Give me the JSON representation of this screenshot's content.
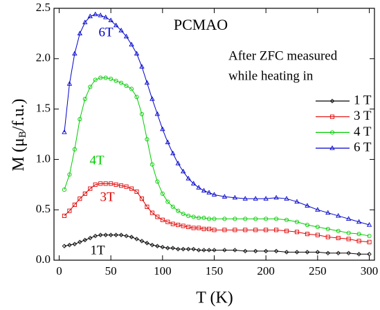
{
  "chart_data": {
    "type": "line",
    "xlabel": "T (K)",
    "ylabel": [
      "M (μ",
      "B",
      "/f.u.)"
    ],
    "annotations": [
      "PCMAO",
      "6T",
      "4T",
      "3T",
      "1T"
    ],
    "legend_title": [
      "After ZFC measured",
      "while heating in"
    ],
    "legend": "upper right",
    "xlim": [
      -5,
      305
    ],
    "ylim": [
      0,
      2.5
    ],
    "xticks": [
      0,
      50,
      100,
      150,
      200,
      250,
      300
    ],
    "yticks": [
      {
        "value": 0,
        "label": "0.0"
      },
      {
        "value": 0.5,
        "label": "0.5"
      },
      {
        "value": 1,
        "label": "1.0"
      },
      {
        "value": 1.5,
        "label": "1.5"
      },
      {
        "value": 2,
        "label": "2.0"
      },
      {
        "value": 2.5,
        "label": "2.5"
      }
    ],
    "grid": false,
    "x": [
      5,
      10,
      15,
      20,
      25,
      30,
      35,
      40,
      45,
      50,
      55,
      60,
      65,
      70,
      75,
      80,
      85,
      90,
      95,
      100,
      105,
      110,
      115,
      120,
      125,
      130,
      135,
      140,
      145,
      150,
      160,
      170,
      180,
      190,
      200,
      210,
      220,
      230,
      240,
      250,
      260,
      270,
      280,
      290,
      300
    ],
    "series": [
      {
        "name": "1 T",
        "color": "#000000",
        "marker": "diamond",
        "values": [
          0.14,
          0.15,
          0.16,
          0.18,
          0.2,
          0.22,
          0.24,
          0.25,
          0.25,
          0.25,
          0.25,
          0.25,
          0.24,
          0.23,
          0.21,
          0.19,
          0.17,
          0.15,
          0.14,
          0.13,
          0.12,
          0.12,
          0.11,
          0.11,
          0.11,
          0.11,
          0.1,
          0.1,
          0.1,
          0.1,
          0.1,
          0.1,
          0.09,
          0.09,
          0.09,
          0.09,
          0.08,
          0.08,
          0.08,
          0.08,
          0.07,
          0.07,
          0.07,
          0.06,
          0.06
        ]
      },
      {
        "name": "3 T",
        "color": "#e00000",
        "marker": "square",
        "values": [
          0.44,
          0.49,
          0.55,
          0.61,
          0.66,
          0.71,
          0.75,
          0.76,
          0.76,
          0.76,
          0.75,
          0.74,
          0.73,
          0.71,
          0.68,
          0.61,
          0.53,
          0.47,
          0.43,
          0.4,
          0.38,
          0.36,
          0.35,
          0.34,
          0.33,
          0.32,
          0.32,
          0.31,
          0.31,
          0.3,
          0.3,
          0.3,
          0.3,
          0.3,
          0.3,
          0.3,
          0.29,
          0.28,
          0.26,
          0.25,
          0.23,
          0.22,
          0.21,
          0.19,
          0.18
        ]
      },
      {
        "name": "4 T",
        "color": "#00cc00",
        "marker": "circle",
        "values": [
          0.7,
          0.85,
          1.1,
          1.4,
          1.6,
          1.72,
          1.79,
          1.81,
          1.81,
          1.8,
          1.78,
          1.76,
          1.73,
          1.7,
          1.62,
          1.45,
          1.2,
          0.95,
          0.78,
          0.66,
          0.58,
          0.53,
          0.49,
          0.46,
          0.44,
          0.43,
          0.42,
          0.42,
          0.41,
          0.41,
          0.41,
          0.41,
          0.41,
          0.41,
          0.41,
          0.41,
          0.4,
          0.38,
          0.35,
          0.33,
          0.31,
          0.29,
          0.27,
          0.26,
          0.24
        ]
      },
      {
        "name": "6 T",
        "color": "#0000cc",
        "marker": "triangle",
        "values": [
          1.27,
          1.75,
          2.05,
          2.25,
          2.36,
          2.42,
          2.44,
          2.43,
          2.41,
          2.38,
          2.33,
          2.28,
          2.22,
          2.14,
          2.05,
          1.92,
          1.76,
          1.6,
          1.45,
          1.3,
          1.17,
          1.06,
          0.96,
          0.88,
          0.81,
          0.76,
          0.72,
          0.69,
          0.67,
          0.65,
          0.63,
          0.62,
          0.61,
          0.61,
          0.61,
          0.62,
          0.61,
          0.58,
          0.54,
          0.5,
          0.47,
          0.44,
          0.41,
          0.38,
          0.35
        ]
      }
    ]
  }
}
